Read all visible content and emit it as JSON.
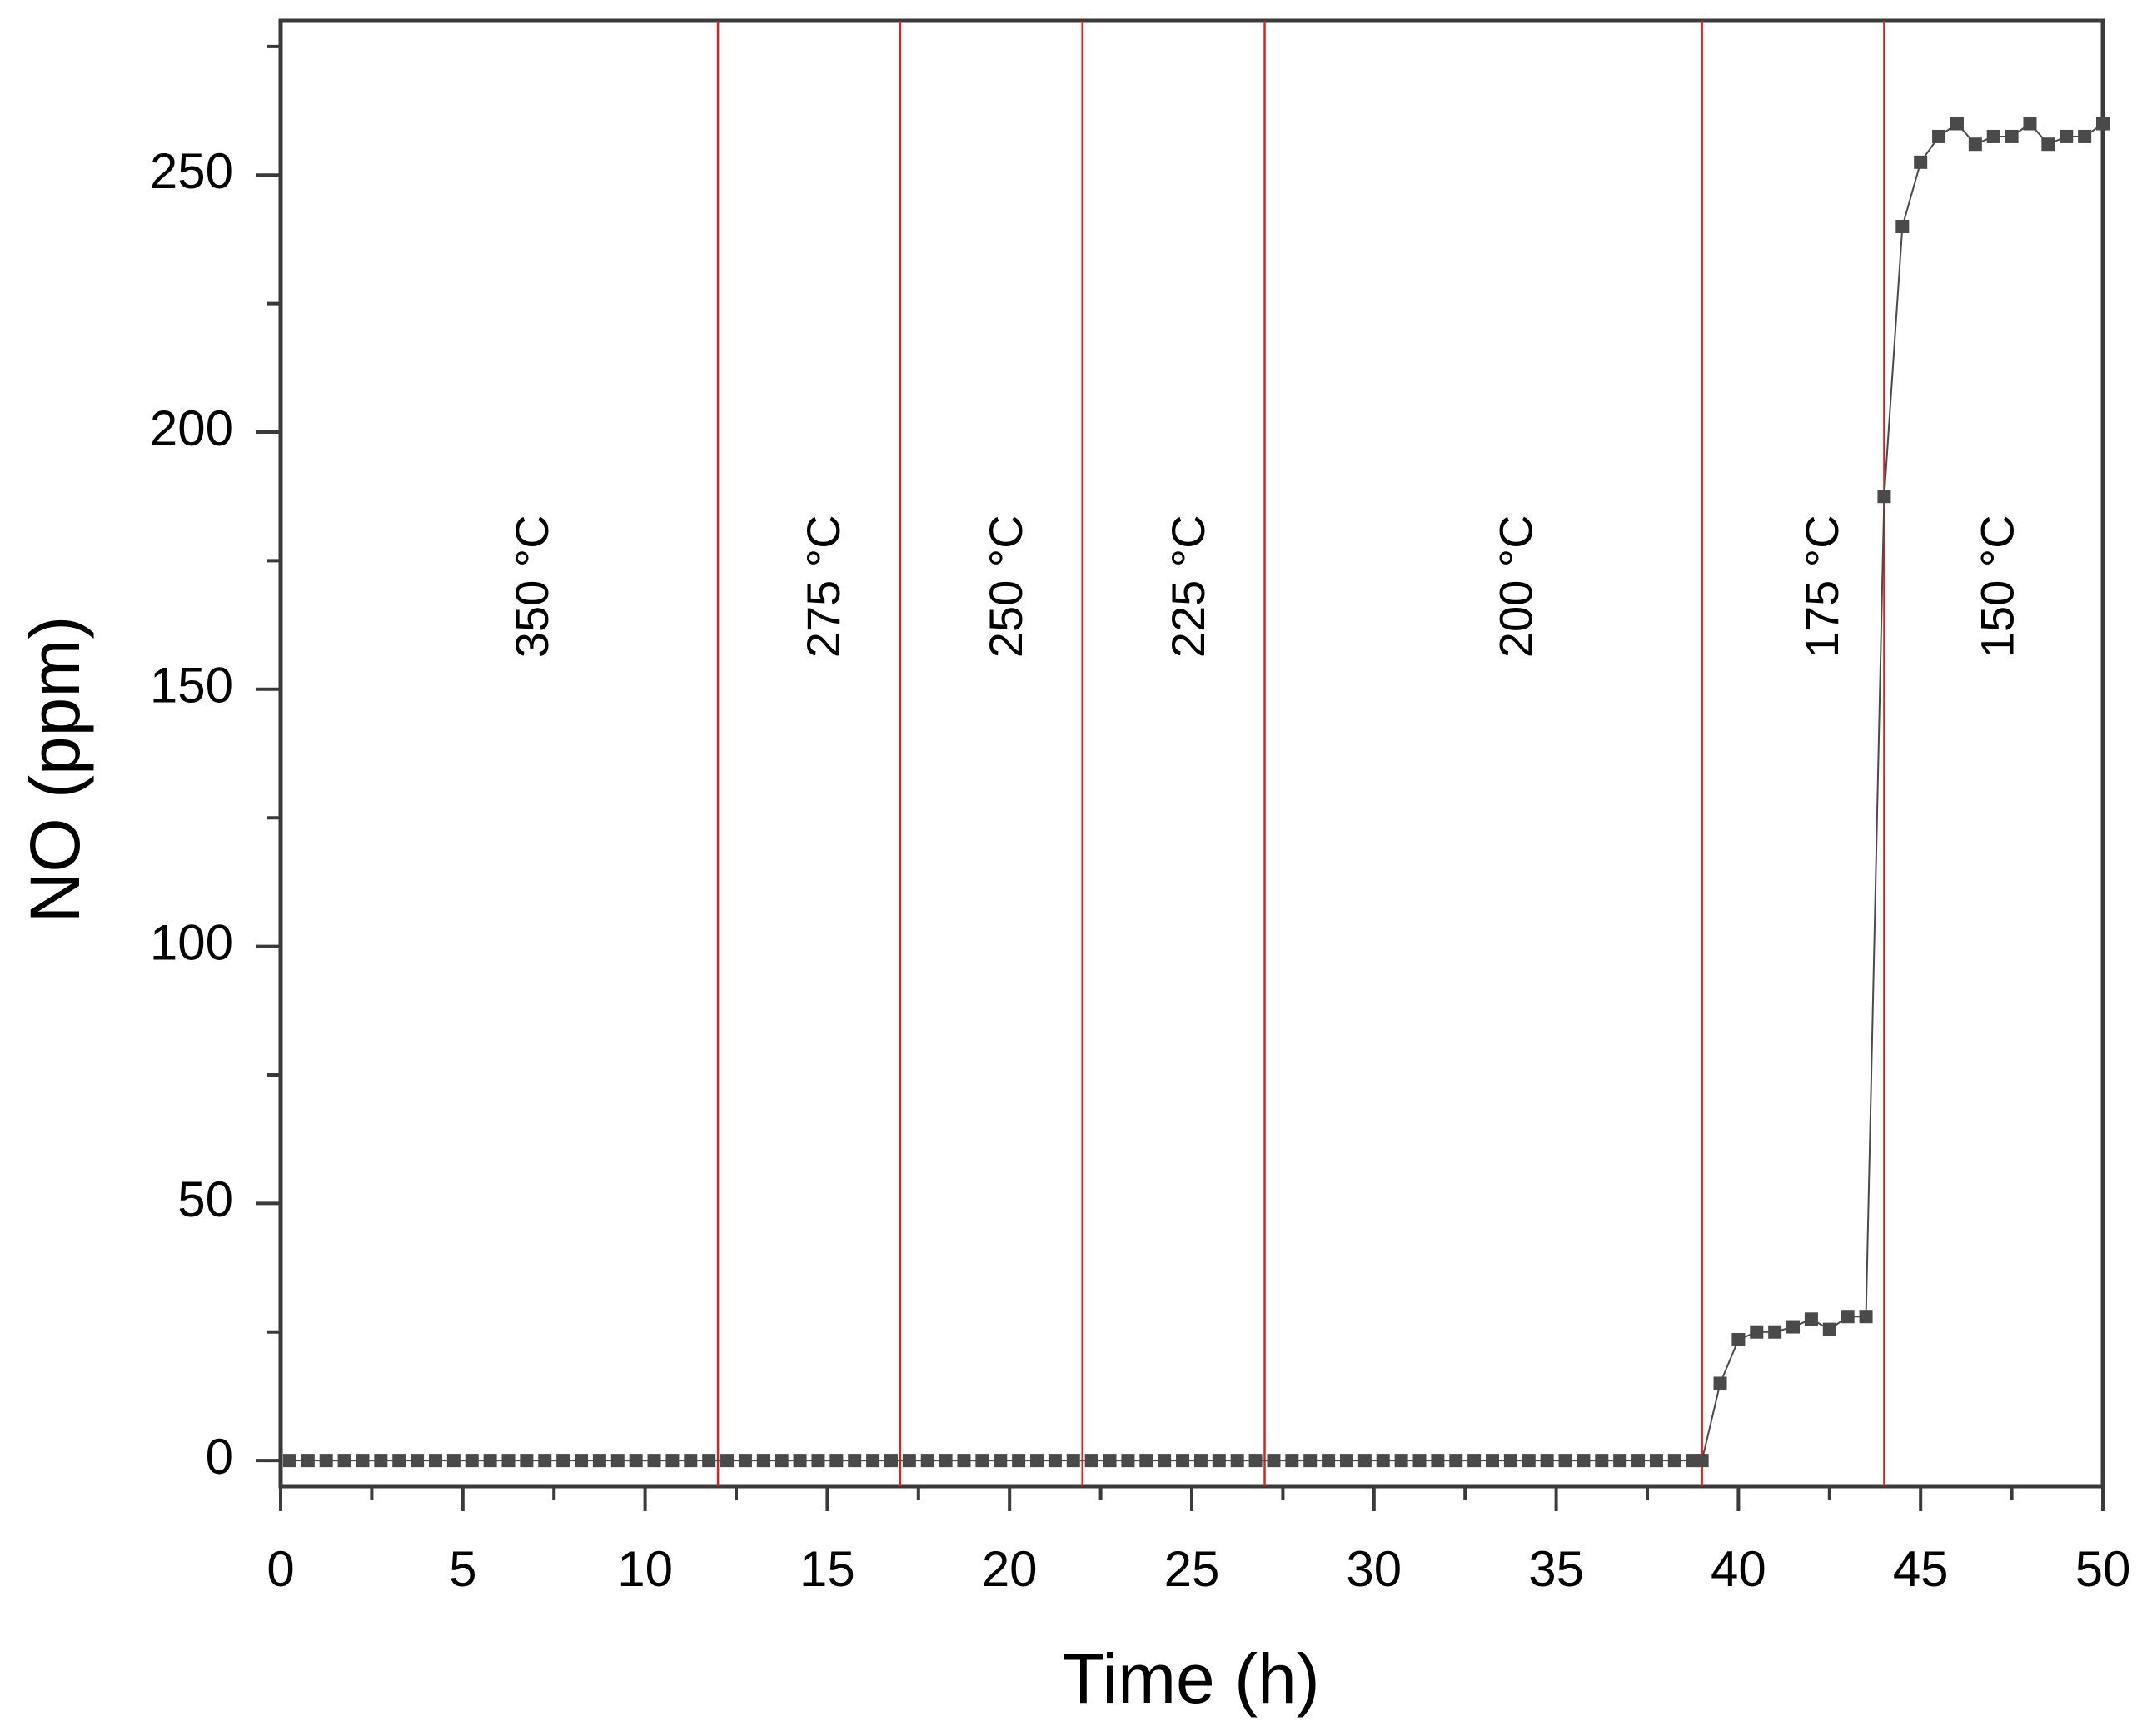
{
  "chart_data": {
    "type": "scatter",
    "title": "",
    "xlabel": "Time (h)",
    "ylabel": "NO (ppm)",
    "xlim": [
      0,
      50
    ],
    "ylim": [
      -5,
      280
    ],
    "x_ticks": [
      0,
      5,
      10,
      15,
      20,
      25,
      30,
      35,
      40,
      45,
      50
    ],
    "y_ticks": [
      0,
      50,
      100,
      150,
      200,
      250
    ],
    "grid": false,
    "legend": "none",
    "colors": {
      "series": "#4a4a4a",
      "separator": "#e02020",
      "axis": "#3a3a3a"
    },
    "series": [
      {
        "marker": "square",
        "connected": true,
        "x": [
          0.25,
          0.75,
          1.25,
          1.75,
          2.25,
          2.75,
          3.25,
          3.75,
          4.25,
          4.75,
          5.25,
          5.75,
          6.25,
          6.75,
          7.25,
          7.75,
          8.25,
          8.75,
          9.25,
          9.75,
          10.25,
          10.75,
          11.25,
          11.75,
          12.25,
          12.75,
          13.25,
          13.75,
          14.25,
          14.75,
          15.25,
          15.75,
          16.25,
          16.75,
          17.25,
          17.75,
          18.25,
          18.75,
          19.25,
          19.75,
          20.25,
          20.75,
          21.25,
          21.75,
          22.25,
          22.75,
          23.25,
          23.75,
          24.25,
          24.75,
          25.25,
          25.75,
          26.25,
          26.75,
          27.25,
          27.75,
          28.25,
          28.75,
          29.25,
          29.75,
          30.25,
          30.75,
          31.25,
          31.75,
          32.25,
          32.75,
          33.25,
          33.75,
          34.25,
          34.75,
          35.25,
          35.75,
          36.25,
          36.75,
          37.25,
          37.75,
          38.25,
          38.75,
          39.0,
          39.5,
          40.0,
          40.5,
          41.0,
          41.5,
          42.0,
          42.5,
          43.0,
          43.5,
          44.0,
          44.5,
          45.0,
          45.5,
          46.0,
          46.5,
          47.0,
          47.5,
          48.0,
          48.5,
          49.0,
          49.5,
          50.0
        ],
        "y": [
          0,
          0,
          0,
          0,
          0,
          0,
          0,
          0,
          0,
          0,
          0,
          0,
          0,
          0,
          0,
          0,
          0,
          0,
          0,
          0,
          0,
          0,
          0,
          0,
          0,
          0,
          0,
          0,
          0,
          0,
          0,
          0,
          0,
          0,
          0,
          0,
          0,
          0,
          0,
          0,
          0,
          0,
          0,
          0,
          0,
          0,
          0,
          0,
          0,
          0,
          0,
          0,
          0,
          0,
          0,
          0,
          0,
          0,
          0,
          0,
          0,
          0,
          0,
          0,
          0,
          0,
          0,
          0,
          0,
          0,
          0,
          0,
          0,
          0,
          0,
          0,
          0,
          0,
          0,
          15,
          23.5,
          25,
          25,
          26,
          27.5,
          25.5,
          28,
          28,
          187.5,
          240,
          252.5,
          257.5,
          260,
          256,
          257.5,
          257.5,
          260,
          256,
          257.5,
          257.5,
          260
        ]
      }
    ],
    "separators_x": [
      12,
      17,
      22,
      27,
      39,
      44
    ],
    "regions": [
      {
        "label": "350 °C",
        "x": 7
      },
      {
        "label": "275 °C",
        "x": 15
      },
      {
        "label": "250 °C",
        "x": 20
      },
      {
        "label": "225 °C",
        "x": 25
      },
      {
        "label": "200 °C",
        "x": 34
      },
      {
        "label": "175 °C",
        "x": 42.4
      },
      {
        "label": "150 °C",
        "x": 47.2
      }
    ],
    "region_label_y": 170
  }
}
